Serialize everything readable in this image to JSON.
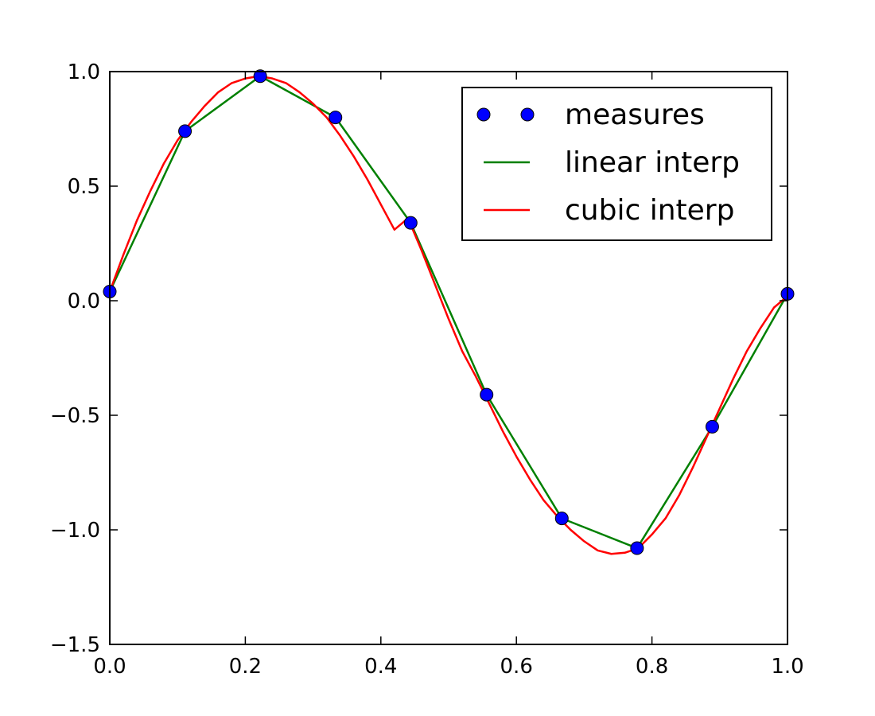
{
  "chart_data": {
    "type": "line",
    "title": "",
    "xlabel": "",
    "ylabel": "",
    "xlim": [
      0.0,
      1.0
    ],
    "ylim": [
      -1.5,
      1.0
    ],
    "grid": false,
    "legend_position": "top-right",
    "x_ticks": [
      0.0,
      0.2,
      0.4,
      0.6,
      0.8,
      1.0
    ],
    "x_tick_labels": [
      "0.0",
      "0.2",
      "0.4",
      "0.6",
      "0.8",
      "1.0"
    ],
    "y_ticks": [
      1.0,
      0.5,
      0.0,
      -0.5,
      -1.0,
      -1.5
    ],
    "y_tick_labels": [
      "1.0",
      "0.5",
      "0.0",
      "−0.5",
      "−1.0",
      "−1.5"
    ],
    "series": [
      {
        "name": "measures",
        "style": "markers",
        "color": "#0000ff",
        "x": [
          0.0,
          0.111,
          0.222,
          0.333,
          0.444,
          0.556,
          0.667,
          0.778,
          0.889,
          1.0
        ],
        "y": [
          0.04,
          0.74,
          0.98,
          0.8,
          0.34,
          -0.41,
          -0.95,
          -1.08,
          -0.55,
          0.03
        ]
      },
      {
        "name": "linear interp",
        "style": "line",
        "color": "#008000",
        "x": [
          0.0,
          0.111,
          0.222,
          0.333,
          0.444,
          0.556,
          0.667,
          0.778,
          0.889,
          1.0
        ],
        "y": [
          0.04,
          0.74,
          0.98,
          0.8,
          0.34,
          -0.41,
          -0.95,
          -1.08,
          -0.55,
          0.03
        ]
      },
      {
        "name": "cubic interp",
        "style": "line",
        "color": "#ff0000",
        "x": [
          0.0,
          0.02,
          0.04,
          0.06,
          0.08,
          0.1,
          0.12,
          0.14,
          0.16,
          0.18,
          0.2,
          0.22,
          0.24,
          0.26,
          0.28,
          0.3,
          0.32,
          0.34,
          0.36,
          0.38,
          0.4,
          0.42,
          0.44,
          0.46,
          0.48,
          0.5,
          0.52,
          0.54,
          0.56,
          0.58,
          0.6,
          0.62,
          0.64,
          0.66,
          0.68,
          0.7,
          0.72,
          0.74,
          0.76,
          0.78,
          0.8,
          0.82,
          0.84,
          0.86,
          0.88,
          0.9,
          0.92,
          0.94,
          0.96,
          0.98,
          1.0
        ],
        "y": [
          0.04,
          0.2,
          0.35,
          0.48,
          0.6,
          0.7,
          0.78,
          0.85,
          0.91,
          0.95,
          0.97,
          0.98,
          0.97,
          0.95,
          0.91,
          0.86,
          0.8,
          0.72,
          0.63,
          0.53,
          0.42,
          0.31,
          0.36,
          0.22,
          0.07,
          -0.08,
          -0.22,
          -0.33,
          -0.45,
          -0.57,
          -0.68,
          -0.78,
          -0.87,
          -0.94,
          -1.0,
          -1.05,
          -1.09,
          -1.105,
          -1.1,
          -1.08,
          -1.02,
          -0.95,
          -0.85,
          -0.73,
          -0.6,
          -0.47,
          -0.34,
          -0.22,
          -0.12,
          -0.03,
          0.02
        ]
      }
    ]
  }
}
